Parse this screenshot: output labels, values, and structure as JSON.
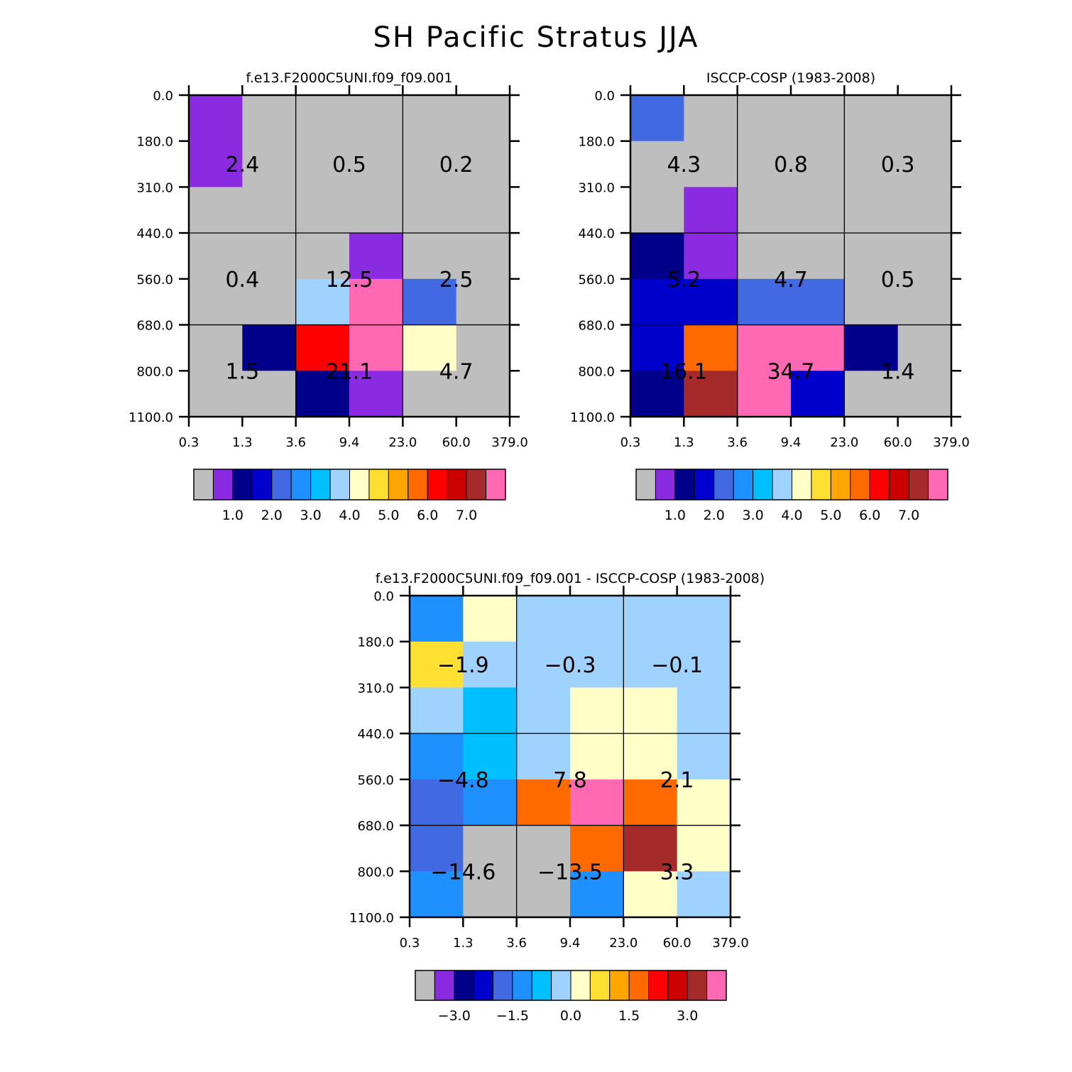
{
  "figure_title": "SH Pacific Stratus JJA",
  "colors": {
    "palette": [
      "#bebebe",
      "#8a2be2",
      "#00008b",
      "#0000cd",
      "#4169e1",
      "#1e90ff",
      "#00bfff",
      "#a0d2ff",
      "#ffffc8",
      "#ffe032",
      "#ffa500",
      "#ff6a00",
      "#ff0000",
      "#cd0000",
      "#a52a2a",
      "#ff69b4"
    ]
  },
  "chart_data": [
    {
      "type": "heatmap",
      "title": "f.e13.F2000C5UNI.f09_f09.001",
      "x_ticks": [
        "0.3",
        "1.3",
        "3.6",
        "9.4",
        "23.0",
        "60.0",
        "379.0"
      ],
      "y_ticks": [
        "0.0",
        "180.0",
        "310.0",
        "440.0",
        "560.0",
        "680.0",
        "800.0",
        "1100.0"
      ],
      "cells": [
        [
          1,
          0,
          0,
          0,
          0,
          0
        ],
        [
          1,
          0,
          0,
          0,
          0,
          0
        ],
        [
          0,
          0,
          0,
          0,
          0,
          0
        ],
        [
          0,
          0,
          0,
          1,
          0,
          0
        ],
        [
          0,
          0,
          7,
          15,
          4,
          0
        ],
        [
          0,
          2,
          12,
          15,
          8,
          0
        ],
        [
          0,
          0,
          2,
          1,
          0,
          0
        ]
      ],
      "group_values": [
        [
          "2.4",
          "0.5",
          "0.2"
        ],
        [
          "0.4",
          "12.5",
          "2.5"
        ],
        [
          "1.5",
          "21.1",
          "4.7"
        ]
      ],
      "colorbar_labels": [
        "1.0",
        "2.0",
        "3.0",
        "4.0",
        "5.0",
        "6.0",
        "7.0"
      ]
    },
    {
      "type": "heatmap",
      "title": "ISCCP-COSP (1983-2008)",
      "x_ticks": [
        "0.3",
        "1.3",
        "3.6",
        "9.4",
        "23.0",
        "60.0",
        "379.0"
      ],
      "y_ticks": [
        "0.0",
        "180.0",
        "310.0",
        "440.0",
        "560.0",
        "680.0",
        "800.0",
        "1100.0"
      ],
      "cells": [
        [
          4,
          0,
          0,
          0,
          0,
          0
        ],
        [
          0,
          0,
          0,
          0,
          0,
          0
        ],
        [
          0,
          1,
          0,
          0,
          0,
          0
        ],
        [
          2,
          1,
          0,
          0,
          0,
          0
        ],
        [
          3,
          3,
          4,
          4,
          0,
          0
        ],
        [
          3,
          11,
          15,
          15,
          2,
          0
        ],
        [
          2,
          14,
          15,
          3,
          0,
          0
        ]
      ],
      "group_values": [
        [
          "4.3",
          "0.8",
          "0.3"
        ],
        [
          "5.2",
          "4.7",
          "0.5"
        ],
        [
          "16.1",
          "34.7",
          "1.4"
        ]
      ],
      "colorbar_labels": [
        "1.0",
        "2.0",
        "3.0",
        "4.0",
        "5.0",
        "6.0",
        "7.0"
      ]
    },
    {
      "type": "heatmap",
      "title": "f.e13.F2000C5UNI.f09_f09.001 - ISCCP-COSP (1983-2008)",
      "x_ticks": [
        "0.3",
        "1.3",
        "3.6",
        "9.4",
        "23.0",
        "60.0",
        "379.0"
      ],
      "y_ticks": [
        "0.0",
        "180.0",
        "310.0",
        "440.0",
        "560.0",
        "680.0",
        "800.0",
        "1100.0"
      ],
      "cells": [
        [
          5,
          8,
          7,
          7,
          7,
          7
        ],
        [
          9,
          7,
          7,
          7,
          7,
          7
        ],
        [
          7,
          6,
          7,
          8,
          8,
          7
        ],
        [
          5,
          6,
          7,
          8,
          8,
          7
        ],
        [
          4,
          5,
          11,
          15,
          11,
          8
        ],
        [
          4,
          0,
          0,
          11,
          14,
          8
        ],
        [
          5,
          0,
          0,
          5,
          8,
          7
        ]
      ],
      "group_values": [
        [
          "-1.9",
          "-0.3",
          "-0.1"
        ],
        [
          "-4.8",
          "7.8",
          "2.1"
        ],
        [
          "-14.6",
          "-13.5",
          "3.3"
        ]
      ],
      "colorbar_labels": [
        "-3.0",
        "-1.5",
        "0.0",
        "1.5",
        "3.0"
      ]
    }
  ]
}
